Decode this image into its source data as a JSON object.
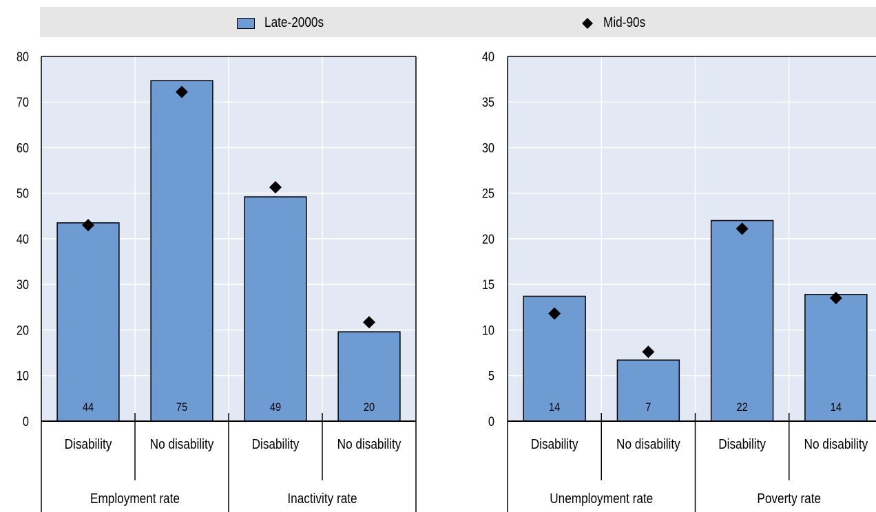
{
  "legend": {
    "late_label": "Late-2000s",
    "mid_label": "Mid-90s",
    "late_color": "#6f9bd3",
    "mid_color": "#000000"
  },
  "chart_data": [
    {
      "type": "bar",
      "ylim": [
        0,
        80
      ],
      "yticks": [
        0,
        10,
        20,
        30,
        40,
        50,
        60,
        70,
        80
      ],
      "categories": [
        "Disability",
        "No disability",
        "Disability",
        "No disability"
      ],
      "groups": [
        "Employment rate",
        "Inactivity rate"
      ],
      "series": [
        {
          "name": "Late-2000s",
          "values": [
            43.5,
            74.7,
            49.2,
            19.6
          ],
          "data_labels": [
            "44",
            "75",
            "49",
            "20"
          ]
        },
        {
          "name": "Mid-90s",
          "values": [
            43.0,
            72.2,
            51.3,
            21.7
          ]
        }
      ],
      "grid": true,
      "legend_position": "top"
    },
    {
      "type": "bar",
      "ylim": [
        0,
        40
      ],
      "yticks": [
        0,
        5,
        10,
        15,
        20,
        25,
        30,
        35,
        40
      ],
      "categories": [
        "Disability",
        "No disability",
        "Disability",
        "No disability"
      ],
      "groups": [
        "Unemployment rate",
        "Poverty rate"
      ],
      "series": [
        {
          "name": "Late-2000s",
          "values": [
            13.7,
            6.7,
            22.0,
            13.9
          ],
          "data_labels": [
            "14",
            "7",
            "22",
            "14"
          ]
        },
        {
          "name": "Mid-90s",
          "values": [
            11.8,
            7.6,
            21.1,
            13.5
          ]
        }
      ],
      "grid": true,
      "legend_position": "top"
    }
  ]
}
